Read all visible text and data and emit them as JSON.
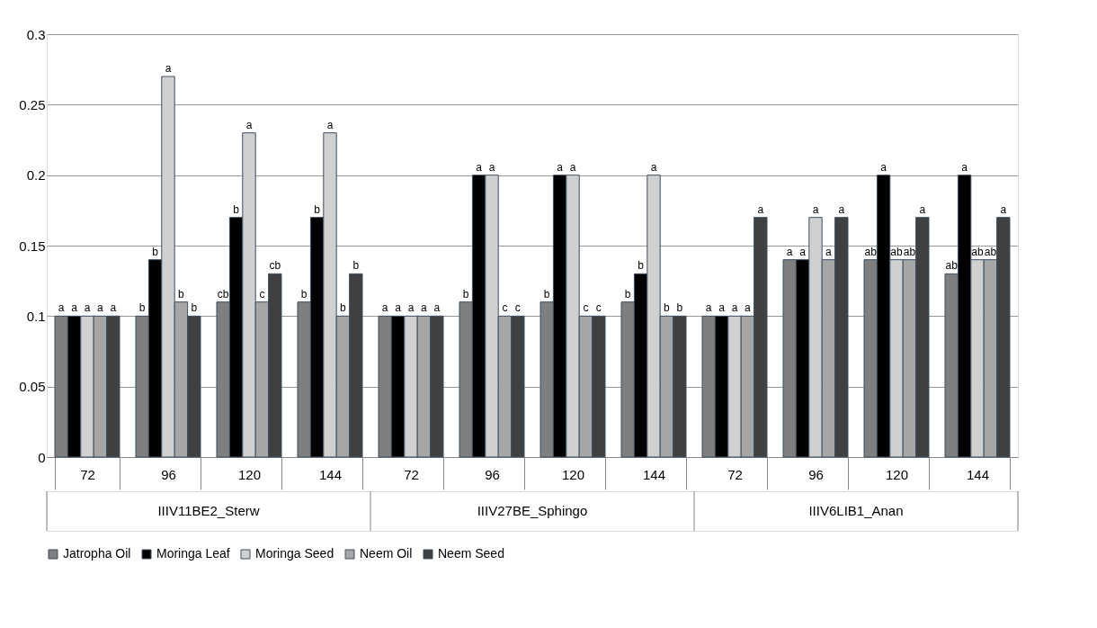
{
  "chart_data": {
    "type": "bar",
    "categories": [
      "72",
      "96",
      "120",
      "144",
      "72",
      "96",
      "120",
      "144",
      "72",
      "96",
      "120",
      "144"
    ],
    "series": [
      {
        "name": "Jatropha Oil",
        "color": "#7f7f7f",
        "values": [
          0.1,
          0.1,
          0.11,
          0.11,
          0.1,
          0.11,
          0.11,
          0.11,
          0.1,
          0.14,
          0.14,
          0.13
        ],
        "value_labels": [
          "a",
          "b",
          "cb",
          "b",
          "a",
          "b",
          "b",
          "b",
          "a",
          "a",
          "ab",
          "ab"
        ]
      },
      {
        "name": "Moringa Leaf",
        "color": "#000000",
        "values": [
          0.1,
          0.14,
          0.17,
          0.17,
          0.1,
          0.2,
          0.2,
          0.13,
          0.1,
          0.14,
          0.2,
          0.2
        ],
        "value_labels": [
          "a",
          "b",
          "b",
          "b",
          "a",
          "a",
          "a",
          "b",
          "a",
          "a",
          "a",
          "a"
        ]
      },
      {
        "name": "Moringa Seed",
        "color": "#d0d0d0",
        "values": [
          0.1,
          0.27,
          0.23,
          0.23,
          0.1,
          0.2,
          0.2,
          0.2,
          0.1,
          0.17,
          0.14,
          0.14
        ],
        "value_labels": [
          "a",
          "a",
          "a",
          "a",
          "a",
          "a",
          "a",
          "a",
          "a",
          "a",
          "ab",
          "ab"
        ]
      },
      {
        "name": "Neem Oil",
        "color": "#a6a6a6",
        "values": [
          0.1,
          0.11,
          0.11,
          0.1,
          0.1,
          0.1,
          0.1,
          0.1,
          0.1,
          0.14,
          0.14,
          0.14
        ],
        "value_labels": [
          "a",
          "b",
          "c",
          "b",
          "a",
          "c",
          "c",
          "b",
          "a",
          "a",
          "ab",
          "ab"
        ]
      },
      {
        "name": "Neem Seed",
        "color": "#404040",
        "values": [
          0.1,
          0.1,
          0.13,
          0.13,
          0.1,
          0.1,
          0.1,
          0.1,
          0.17,
          0.17,
          0.17,
          0.17
        ],
        "value_labels": [
          "a",
          "b",
          "cb",
          "b",
          "a",
          "c",
          "c",
          "b",
          "a",
          "a",
          "a",
          "a"
        ]
      }
    ],
    "annotations": [
      "IIIV11BE2_Sterw",
      "IIIV27BE_Sphingo",
      "IIIV6LIB1_Anan"
    ],
    "ylim": [
      0,
      0.3
    ],
    "yticks": [
      0,
      0.05,
      0.1,
      0.15,
      0.2,
      0.25,
      0.3
    ],
    "grid": "y",
    "legend": "bottom"
  }
}
